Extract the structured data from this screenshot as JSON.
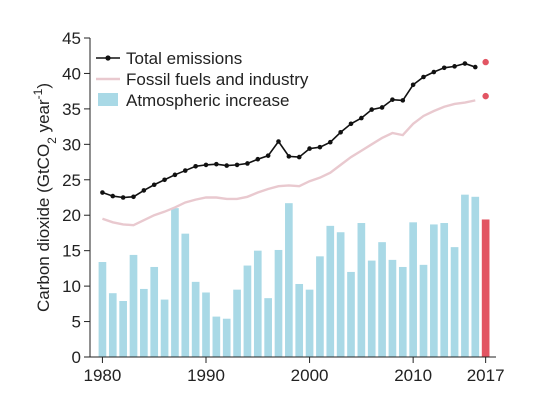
{
  "chart_data": {
    "type": "bar",
    "title": "",
    "xlabel": "",
    "ylabel": {
      "pre": "Carbon dioxide (GtCO",
      "sub": "2",
      "mid": " year",
      "sup": "-1",
      "post": ")"
    },
    "xlim": [
      1978.8,
      2018
    ],
    "ylim": [
      0,
      45
    ],
    "x_ticks": [
      1980,
      1990,
      2000,
      2010,
      2017
    ],
    "y_ticks": [
      0,
      5,
      10,
      15,
      20,
      25,
      30,
      35,
      40,
      45
    ],
    "years": [
      1980,
      1981,
      1982,
      1983,
      1984,
      1985,
      1986,
      1987,
      1988,
      1989,
      1990,
      1991,
      1992,
      1993,
      1994,
      1995,
      1996,
      1997,
      1998,
      1999,
      2000,
      2001,
      2002,
      2003,
      2004,
      2005,
      2006,
      2007,
      2008,
      2009,
      2010,
      2011,
      2012,
      2013,
      2014,
      2015,
      2016,
      2017
    ],
    "series": [
      {
        "name": "Total emissions",
        "mark": "line-dots",
        "color": "#111111",
        "values": [
          23.2,
          22.7,
          22.5,
          22.6,
          23.5,
          24.3,
          25.0,
          25.7,
          26.3,
          26.9,
          27.1,
          27.2,
          27.0,
          27.1,
          27.3,
          27.9,
          28.4,
          30.4,
          28.3,
          28.2,
          29.4,
          29.6,
          30.3,
          31.7,
          32.9,
          33.7,
          34.9,
          35.2,
          36.3,
          36.2,
          38.4,
          39.5,
          40.2,
          40.8,
          41.0,
          41.4,
          40.9,
          41.6
        ],
        "highlight_last_color": "#e25563"
      },
      {
        "name": "Fossil fuels and industry",
        "mark": "line",
        "color": "#e9c9cf",
        "values": [
          19.5,
          19.0,
          18.7,
          18.6,
          19.3,
          20.0,
          20.5,
          21.1,
          21.8,
          22.2,
          22.5,
          22.5,
          22.3,
          22.3,
          22.6,
          23.2,
          23.7,
          24.1,
          24.2,
          24.1,
          24.8,
          25.3,
          26.0,
          27.1,
          28.2,
          29.1,
          30.0,
          30.9,
          31.6,
          31.3,
          32.9,
          34.0,
          34.7,
          35.3,
          35.7,
          35.9,
          36.2,
          36.8
        ],
        "highlight_last_color": "#e25563"
      },
      {
        "name": "Atmospheric increase",
        "mark": "bar",
        "color": "#a9d9e6",
        "values": [
          13.4,
          9.0,
          7.9,
          14.4,
          9.6,
          12.7,
          8.1,
          21.0,
          17.4,
          10.6,
          9.1,
          5.7,
          5.4,
          9.5,
          12.9,
          15.0,
          8.3,
          15.1,
          21.7,
          10.3,
          9.5,
          14.2,
          18.5,
          17.6,
          12.0,
          18.9,
          13.6,
          16.2,
          13.7,
          12.7,
          19.0,
          13.0,
          18.7,
          18.9,
          15.5,
          22.9,
          22.6,
          19.4
        ],
        "highlight_last_color": "#e25563"
      }
    ],
    "legend": {
      "placement": "top-left",
      "items": [
        {
          "label": "Total emissions",
          "mark": "line-dots",
          "color": "#111111"
        },
        {
          "label": "Fossil fuels and industry",
          "mark": "line",
          "color": "#e9c9cf"
        },
        {
          "label": "Atmospheric increase",
          "mark": "swatch",
          "color": "#a9d9e6"
        }
      ]
    },
    "grid": false
  }
}
